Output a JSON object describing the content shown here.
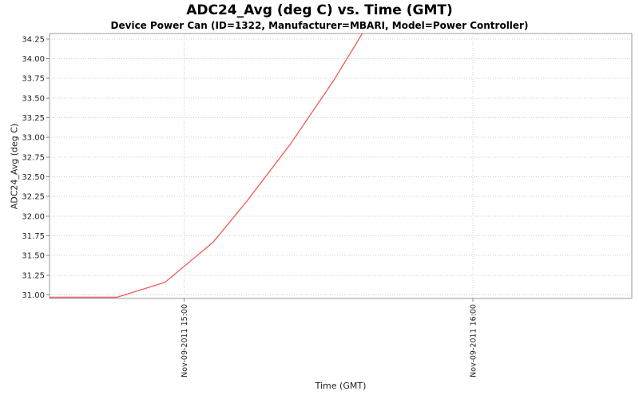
{
  "title": "ADC24_Avg (deg C) vs. Time (GMT)",
  "subtitle": "Device Power Can (ID=1322, Manufacturer=MBARI, Model=Power Controller)",
  "colors": {
    "series_line": "#ee6464",
    "gridline": "#cccccc",
    "axis_border": "#999999",
    "tick_mark": "#888888",
    "tick_text": "#222222",
    "background": "#ffffff"
  },
  "chart_data": {
    "type": "line",
    "title": "ADC24_Avg (deg C) vs. Time (GMT)",
    "subtitle": "Device Power Can (ID=1322, Manufacturer=MBARI, Model=Power Controller)",
    "grid": "dotted",
    "legend": "none",
    "x_axis": {
      "label": "Time (GMT)",
      "unit": "minutes of day, Nov-09-2011 GMT",
      "lim": [
        872,
        993
      ],
      "ticks": [
        {
          "t": 900,
          "label": "Nov-09-2011 15:00"
        },
        {
          "t": 960,
          "label": "Nov-09-2011 16:00"
        }
      ]
    },
    "y_axis": {
      "label": "ADC24_Avg (deg C)",
      "lim": [
        30.955,
        34.32
      ],
      "ticks": [
        {
          "v": 31.0,
          "label": "31.00"
        },
        {
          "v": 31.25,
          "label": "31.25"
        },
        {
          "v": 31.5,
          "label": "31.50"
        },
        {
          "v": 31.75,
          "label": "31.75"
        },
        {
          "v": 32.0,
          "label": "32.00"
        },
        {
          "v": 32.25,
          "label": "32.25"
        },
        {
          "v": 32.5,
          "label": "32.50"
        },
        {
          "v": 32.75,
          "label": "32.75"
        },
        {
          "v": 33.0,
          "label": "33.00"
        },
        {
          "v": 33.25,
          "label": "33.25"
        },
        {
          "v": 33.5,
          "label": "33.50"
        },
        {
          "v": 33.75,
          "label": "33.75"
        },
        {
          "v": 34.0,
          "label": "34.00"
        },
        {
          "v": 34.25,
          "label": "34.25"
        }
      ]
    },
    "series": [
      {
        "name": "ADC24_Avg",
        "color": "#ee6464",
        "points": [
          [
            872,
            30.97
          ],
          [
            886,
            30.97
          ],
          [
            896,
            31.16
          ],
          [
            906,
            31.67
          ],
          [
            913,
            32.19
          ],
          [
            922,
            32.91
          ],
          [
            931,
            33.72
          ],
          [
            937,
            34.32
          ]
        ]
      }
    ]
  }
}
